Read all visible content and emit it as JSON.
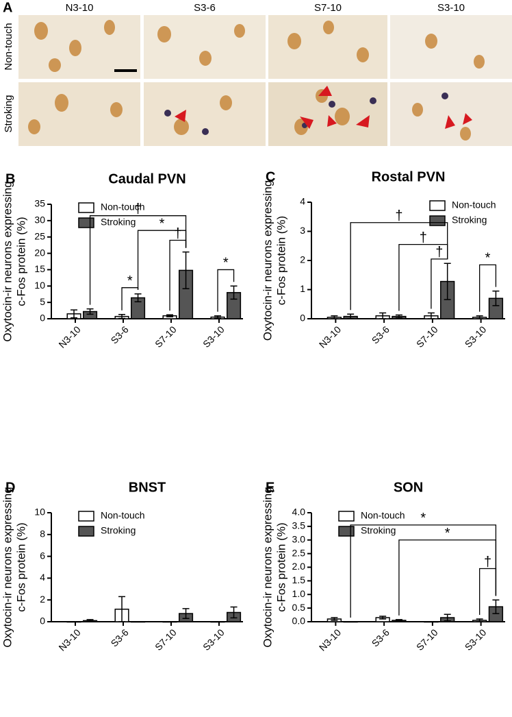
{
  "panel_a": {
    "letter": "A",
    "columns": [
      "N3-10",
      "S3-6",
      "S7-10",
      "S3-10"
    ],
    "rows": [
      "Non-touch",
      "Stroking"
    ]
  },
  "chart_data": [
    {
      "type": "bar",
      "letter": "B",
      "title": "Caudal PVN",
      "ylabel": [
        "Oxytocin-ir neurons expressing",
        "c-Fos protein (%)"
      ],
      "categories": [
        "N3-10",
        "S3-6",
        "S7-10",
        "S3-10"
      ],
      "series": [
        {
          "name": "Non-touch",
          "color": "#ffffff",
          "values": [
            1.5,
            0.7,
            0.9,
            0.5
          ],
          "errors": [
            1.2,
            0.6,
            0.3,
            0.4
          ]
        },
        {
          "name": "Stroking",
          "color": "#555555",
          "values": [
            2.2,
            6.4,
            14.8,
            8.0
          ],
          "errors": [
            0.8,
            1.2,
            5.6,
            2.0
          ]
        }
      ],
      "ylim": [
        0,
        35
      ],
      "yticks": [
        0,
        5,
        10,
        15,
        20,
        25,
        30,
        35
      ],
      "legend": "top-left",
      "annotations": [
        {
          "text": "*",
          "from": [
            1,
            0
          ],
          "to": [
            1,
            1
          ],
          "y": 9.5
        },
        {
          "text": "†",
          "from": [
            2,
            0
          ],
          "to": [
            2,
            1
          ],
          "y": 24
        },
        {
          "text": "*",
          "from": [
            1,
            1
          ],
          "to": [
            2,
            1
          ],
          "y": 27
        },
        {
          "text": "†",
          "from": [
            0,
            1
          ],
          "to": [
            2,
            1
          ],
          "y": 31.5
        },
        {
          "text": "*",
          "from": [
            3,
            0
          ],
          "to": [
            3,
            1
          ],
          "y": 15
        }
      ]
    },
    {
      "type": "bar",
      "letter": "C",
      "title": "Rostal PVN",
      "ylabel": [
        "Oxytocin-ir neurons expressing",
        "c-Fos protein (%)"
      ],
      "categories": [
        "N3-10",
        "S3-6",
        "S7-10",
        "S3-10"
      ],
      "series": [
        {
          "name": "Non-touch",
          "color": "#ffffff",
          "values": [
            0.05,
            0.1,
            0.1,
            0.05
          ],
          "errors": [
            0.05,
            0.1,
            0.1,
            0.05
          ]
        },
        {
          "name": "Stroking",
          "color": "#555555",
          "values": [
            0.08,
            0.08,
            1.28,
            0.7
          ],
          "errors": [
            0.08,
            0.05,
            0.62,
            0.25
          ]
        }
      ],
      "ylim": [
        0,
        4
      ],
      "yticks": [
        0,
        1,
        2,
        3,
        4
      ],
      "legend": "top-right",
      "annotations": [
        {
          "text": "*",
          "from": [
            3,
            0
          ],
          "to": [
            3,
            1
          ],
          "y": 1.85
        },
        {
          "text": "†",
          "from": [
            2,
            0
          ],
          "to": [
            2,
            1
          ],
          "y": 2.05
        },
        {
          "text": "†",
          "from": [
            1,
            1
          ],
          "to": [
            2,
            1
          ],
          "y": 2.55
        },
        {
          "text": "†",
          "from": [
            0,
            1
          ],
          "to": [
            2,
            1
          ],
          "y": 3.3
        }
      ]
    },
    {
      "type": "bar",
      "letter": "D",
      "title": "BNST",
      "ylabel": [
        "Oxytocin-ir neurons expressing",
        "c-Fos protein (%)"
      ],
      "categories": [
        "N3-10",
        "S3-6",
        "S7-10",
        "S3-10"
      ],
      "series": [
        {
          "name": "Non-touch",
          "color": "#ffffff",
          "values": [
            0,
            1.15,
            0,
            0
          ],
          "errors": [
            0,
            1.15,
            0,
            0
          ]
        },
        {
          "name": "Stroking",
          "color": "#555555",
          "values": [
            0.1,
            0,
            0.75,
            0.85
          ],
          "errors": [
            0.1,
            0,
            0.45,
            0.5
          ]
        }
      ],
      "ylim": [
        0,
        10
      ],
      "yticks": [
        0,
        2,
        4,
        6,
        8,
        10
      ],
      "legend": "top-left",
      "annotations": []
    },
    {
      "type": "bar",
      "letter": "E",
      "title": "SON",
      "ylabel": [
        "Oxytocin-ir neurons expressing",
        "c-Fos protein (%)"
      ],
      "categories": [
        "N3-10",
        "S3-6",
        "S7-10",
        "S3-10"
      ],
      "series": [
        {
          "name": "Non-touch",
          "color": "#ffffff",
          "values": [
            0.1,
            0.15,
            0,
            0.05
          ],
          "errors": [
            0.05,
            0.05,
            0,
            0.05
          ]
        },
        {
          "name": "Stroking",
          "color": "#555555",
          "values": [
            0,
            0.05,
            0.15,
            0.55
          ],
          "errors": [
            0,
            0.03,
            0.12,
            0.25
          ]
        }
      ],
      "ylim": [
        0,
        4
      ],
      "yticks": [
        {
          "value": 0,
          "label": "0.0"
        },
        0.5,
        {
          "value": 1,
          "label": "1.0"
        },
        1.5,
        {
          "value": 2,
          "label": "2.0"
        },
        2.5,
        {
          "value": 3,
          "label": "3.0"
        },
        3.5,
        {
          "value": 4,
          "label": "4.0"
        }
      ],
      "legend": "top-left",
      "annotations": [
        {
          "text": "†",
          "from": [
            3,
            0
          ],
          "to": [
            3,
            1
          ],
          "y": 1.95
        },
        {
          "text": "*",
          "from": [
            1,
            1
          ],
          "to": [
            3,
            1
          ],
          "y": 3.0
        },
        {
          "text": "*",
          "from": [
            0,
            1
          ],
          "to": [
            3,
            1
          ],
          "y": 3.55
        }
      ]
    }
  ]
}
